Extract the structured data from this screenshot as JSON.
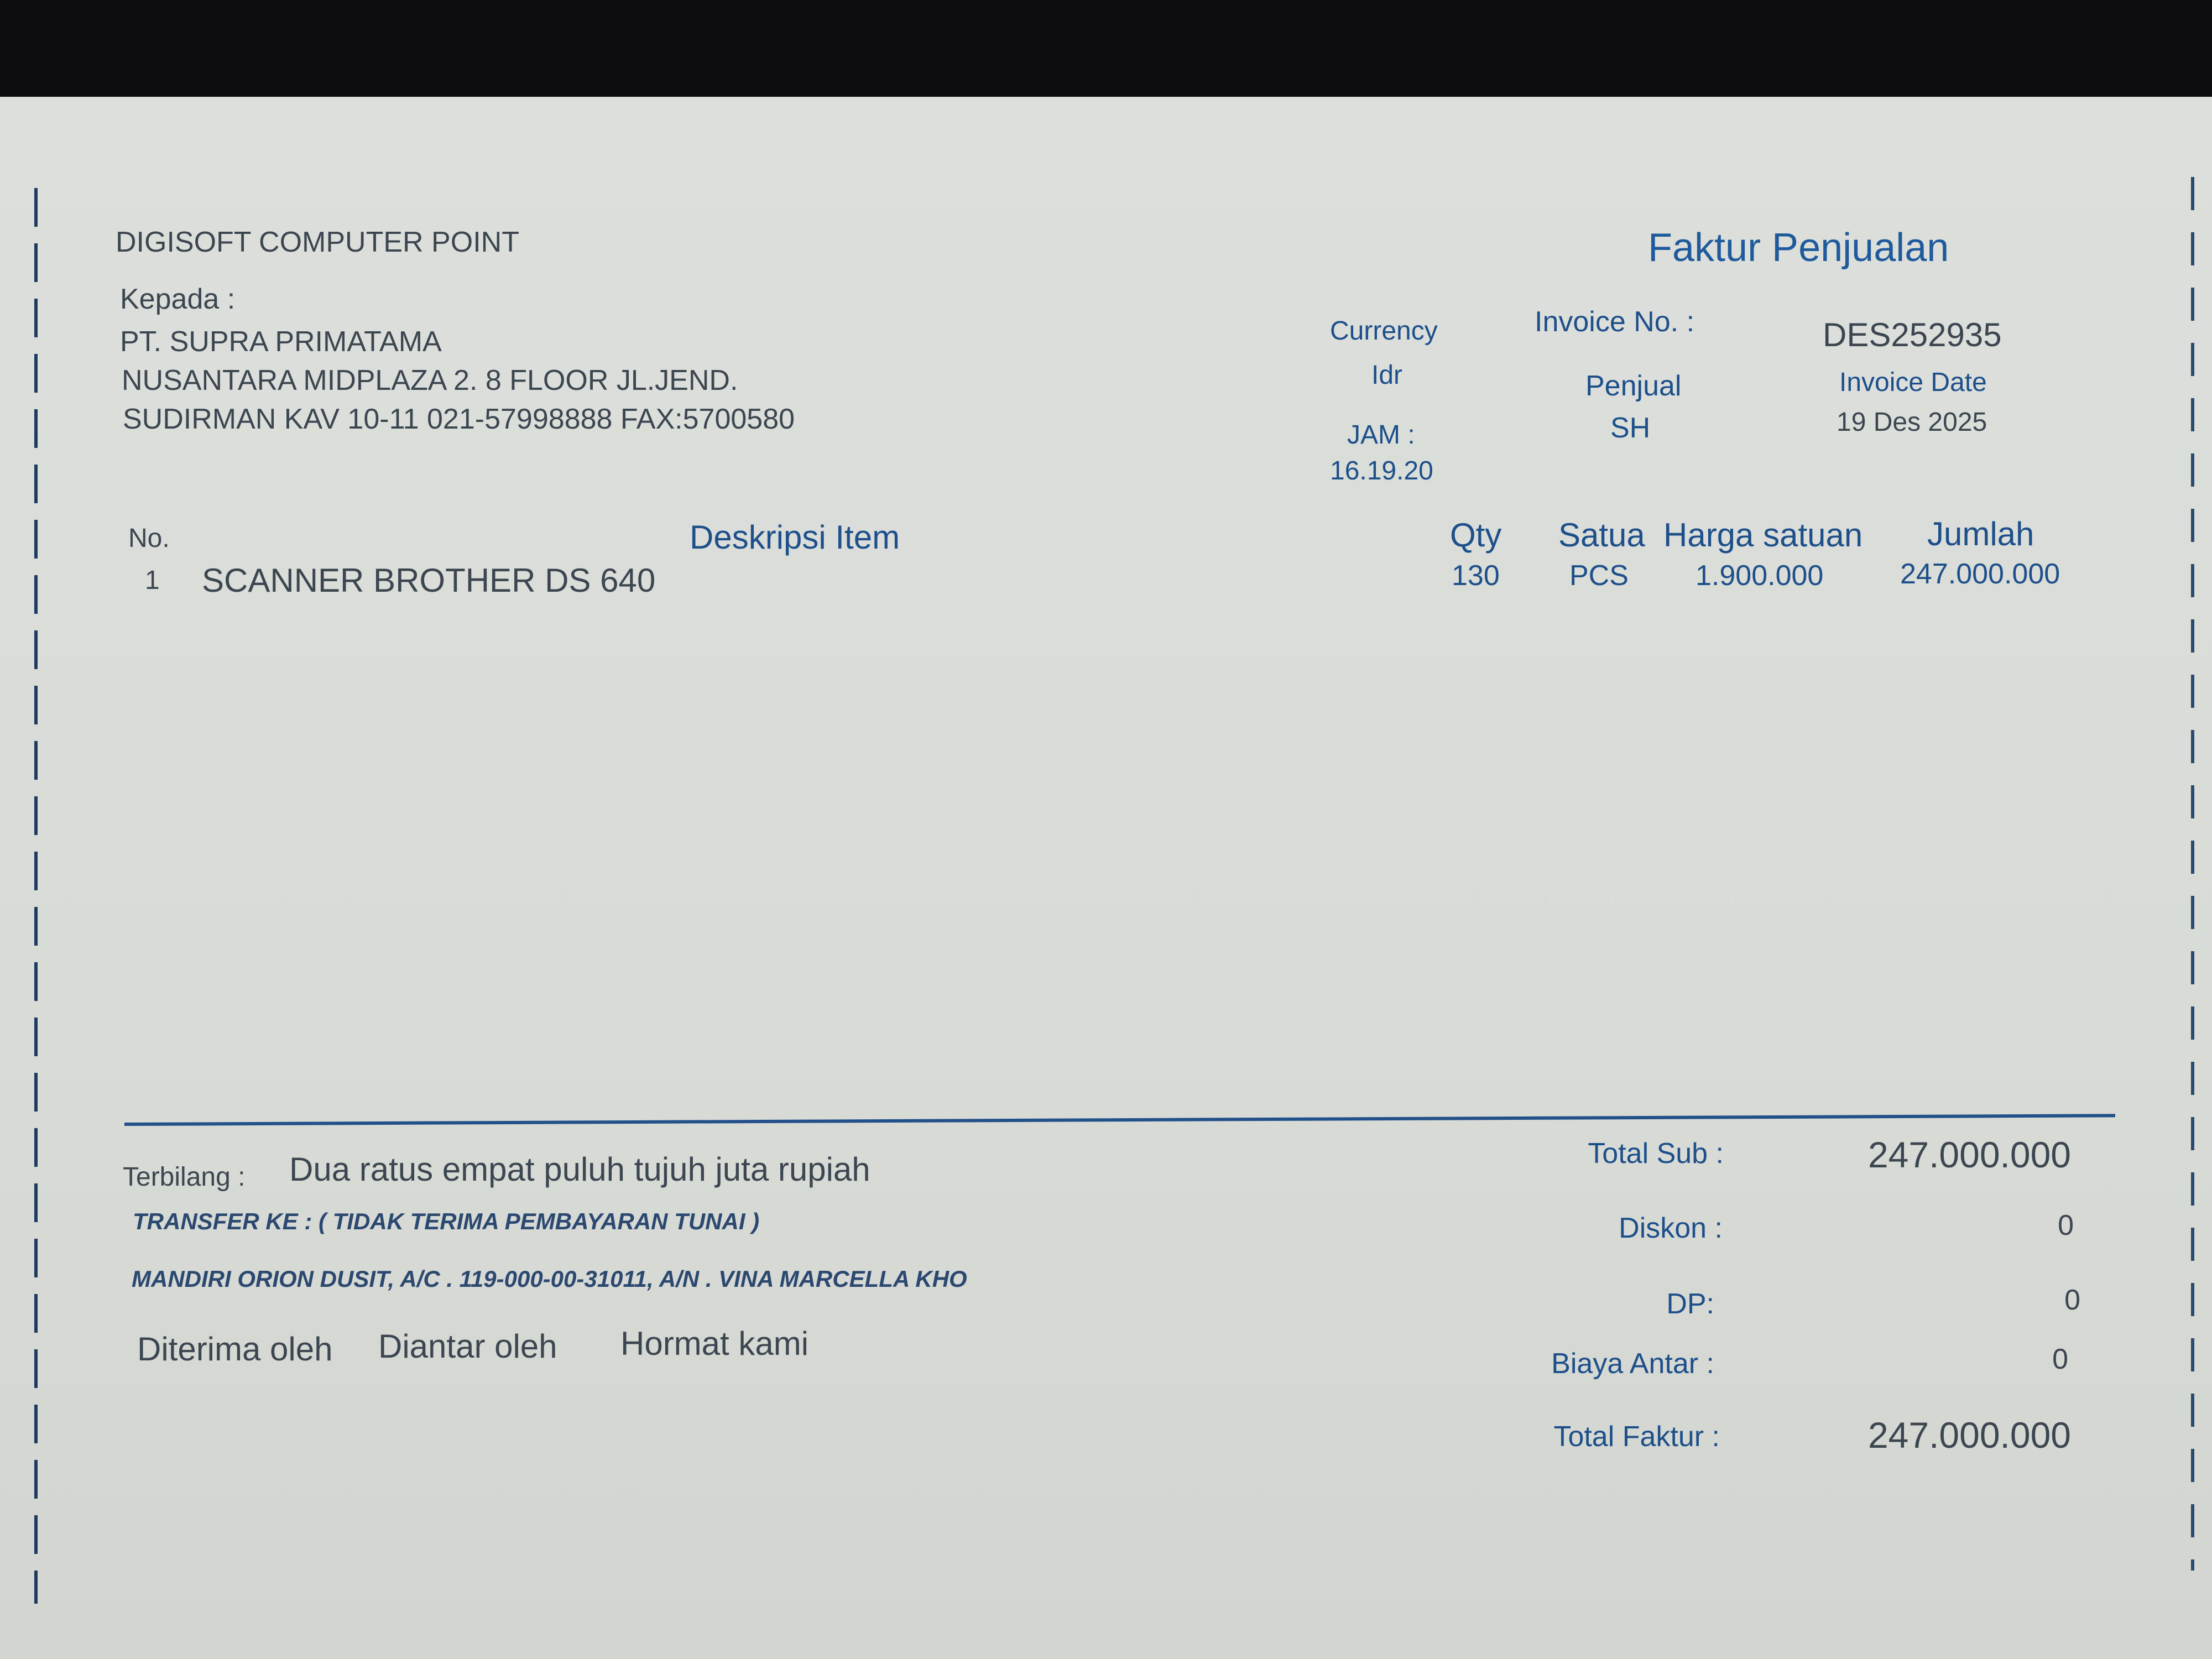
{
  "company": "DIGISOFT COMPUTER POINT",
  "doc_title": "Faktur Penjualan",
  "recipient": {
    "label": "Kepada :",
    "name": "PT. SUPRA PRIMATAMA",
    "address_line1": "NUSANTARA MIDPLAZA 2. 8 FLOOR JL.JEND.",
    "address_line2": "SUDIRMAN KAV 10-11 021-57998888 FAX:5700580"
  },
  "meta": {
    "currency_label": "Currency",
    "currency_value": "Idr",
    "time_label": "JAM :",
    "time_value": "16.19.20",
    "invoice_no_label": "Invoice No. :",
    "invoice_no_value": "DES252935",
    "seller_label": "Penjual",
    "seller_value": "SH",
    "invoice_date_label": "Invoice Date",
    "invoice_date_value": "19 Des 2025"
  },
  "table": {
    "headers": {
      "no": "No.",
      "description": "Deskripsi Item",
      "qty": "Qty",
      "unit": "Satua",
      "unit_price": "Harga satuan",
      "amount": "Jumlah"
    },
    "rows": [
      {
        "no": "1",
        "description": "SCANNER BROTHER DS 640",
        "qty": "130",
        "unit": "PCS",
        "unit_price": "1.900.000",
        "amount": "247.000.000"
      }
    ]
  },
  "footer": {
    "terbilang_label": "Terbilang :",
    "terbilang_value": "Dua ratus empat puluh tujuh juta rupiah",
    "transfer_note": "TRANSFER KE : ( TIDAK TERIMA PEMBAYARAN TUNAI )",
    "bank_info": "MANDIRI ORION DUSIT, A/C . 119-000-00-31011, A/N . VINA MARCELLA KHO",
    "signatures": [
      "Diterima oleh",
      "Diantar oleh",
      "Hormat kami"
    ]
  },
  "totals": {
    "subtotal_label": "Total Sub :",
    "subtotal_value": "247.000.000",
    "discount_label": "Diskon :",
    "discount_value": "0",
    "dp_label": "DP:",
    "dp_value": "0",
    "delivery_label": "Biaya Antar :",
    "delivery_value": "0",
    "total_label": "Total Faktur :",
    "total_value": "247.000.000"
  },
  "colors": {
    "accent": "#1f5a9c",
    "text": "#3c4650",
    "paper": "#d9dcd8"
  }
}
